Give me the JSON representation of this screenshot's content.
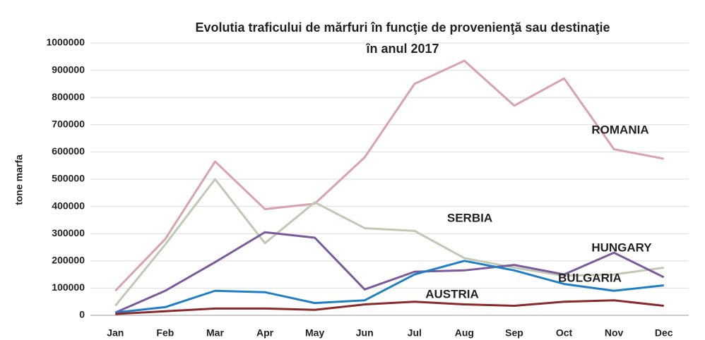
{
  "chart_data": {
    "type": "line",
    "title": [
      "Evolutia traficului de mărfuri în funcţie de provenienţă sau destinaţie",
      "în anul 2017"
    ],
    "y_label": "tone marfa",
    "categories": [
      "Jan",
      "Feb",
      "Mar",
      "Apr",
      "May",
      "Jun",
      "Jul",
      "Aug",
      "Sep",
      "Oct",
      "Nov",
      "Dec"
    ],
    "series": [
      {
        "name": "ROMANIA",
        "color": "#d9a3ad",
        "values": [
          90000,
          280000,
          565000,
          390000,
          410000,
          580000,
          850000,
          935000,
          770000,
          870000,
          610000,
          575000
        ]
      },
      {
        "name": "SERBIA",
        "color": "#bfc9b3",
        "values": [
          35000,
          260000,
          500000,
          265000,
          415000,
          320000,
          310000,
          210000,
          175000,
          145000,
          150000,
          175000
        ]
      },
      {
        "name": "HUNGARY",
        "color": "#7a5a9a",
        "values": [
          10000,
          90000,
          195000,
          305000,
          285000,
          95000,
          160000,
          165000,
          185000,
          150000,
          230000,
          140000
        ]
      },
      {
        "name": "BULGARIA",
        "color": "#1f7fc4",
        "values": [
          10000,
          30000,
          90000,
          85000,
          45000,
          55000,
          150000,
          200000,
          165000,
          115000,
          90000,
          110000
        ]
      },
      {
        "name": "AUSTRIA",
        "color": "#8b2a2a",
        "values": [
          5000,
          15000,
          25000,
          25000,
          20000,
          40000,
          50000,
          40000,
          35000,
          50000,
          55000,
          35000
        ]
      }
    ],
    "ylim": [
      0,
      1000000
    ],
    "yticks": [
      0,
      100000,
      200000,
      300000,
      400000,
      500000,
      600000,
      700000,
      800000,
      900000,
      1000000
    ],
    "grid": true
  }
}
